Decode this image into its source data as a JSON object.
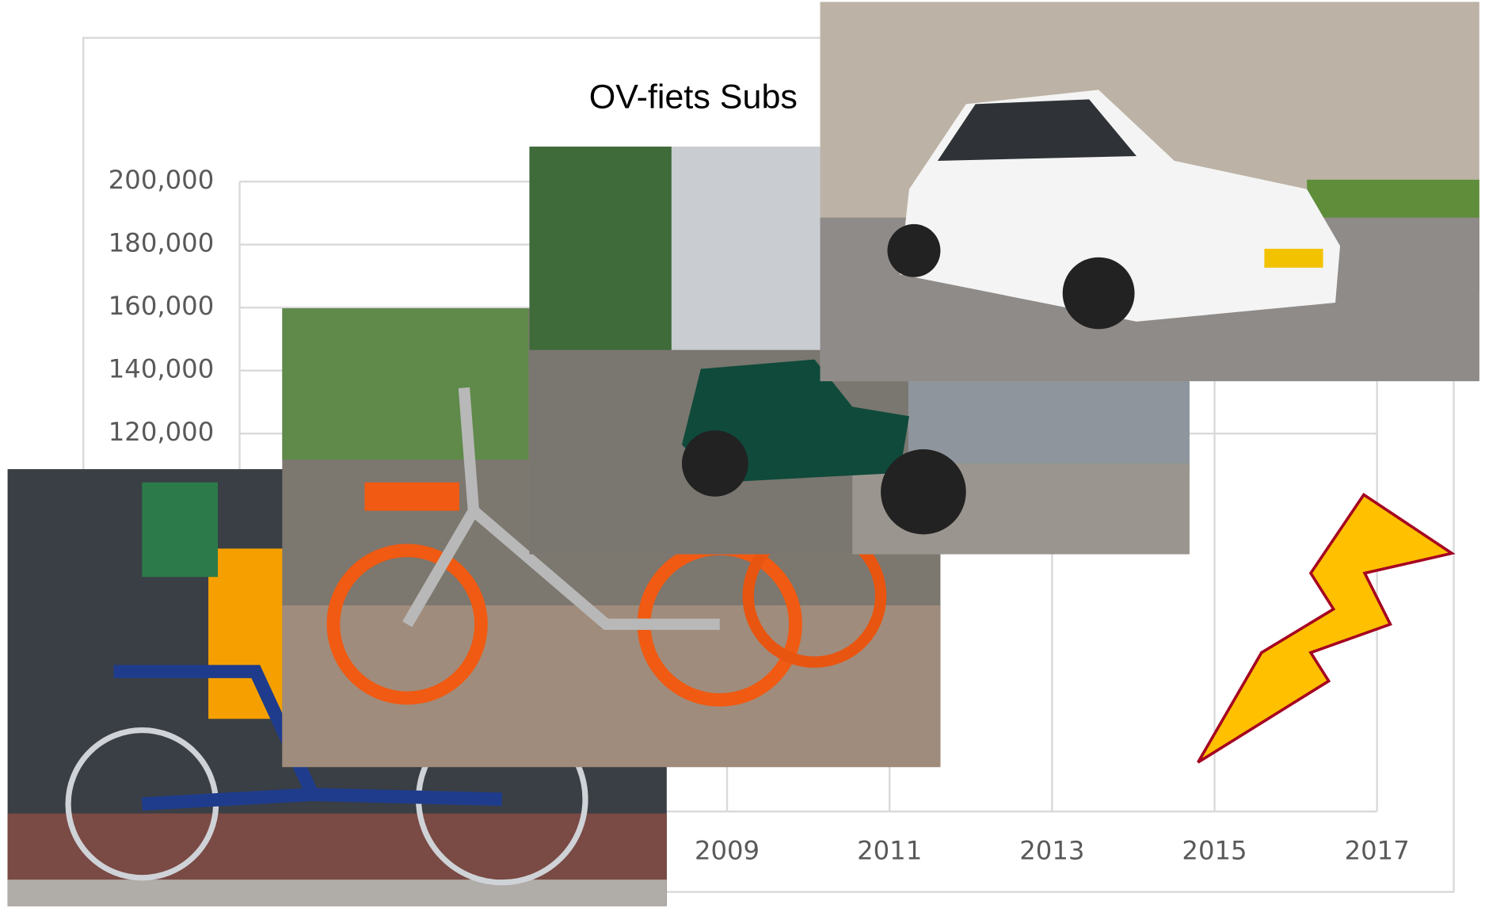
{
  "chart_data": {
    "type": "line",
    "title": "OV-fiets Subs",
    "xlim": [
      2003,
      2017
    ],
    "xticks": [
      2009,
      2011,
      2013,
      2015,
      2017
    ],
    "ylim": [
      0,
      200000
    ],
    "yticks": [
      {
        "value": 120000,
        "label": "120,000"
      },
      {
        "value": 140000,
        "label": "140,000"
      },
      {
        "value": 160000,
        "label": "160,000"
      },
      {
        "value": 180000,
        "label": "180,000"
      },
      {
        "value": 200000,
        "label": "200,000"
      }
    ],
    "grid": true
  }
}
